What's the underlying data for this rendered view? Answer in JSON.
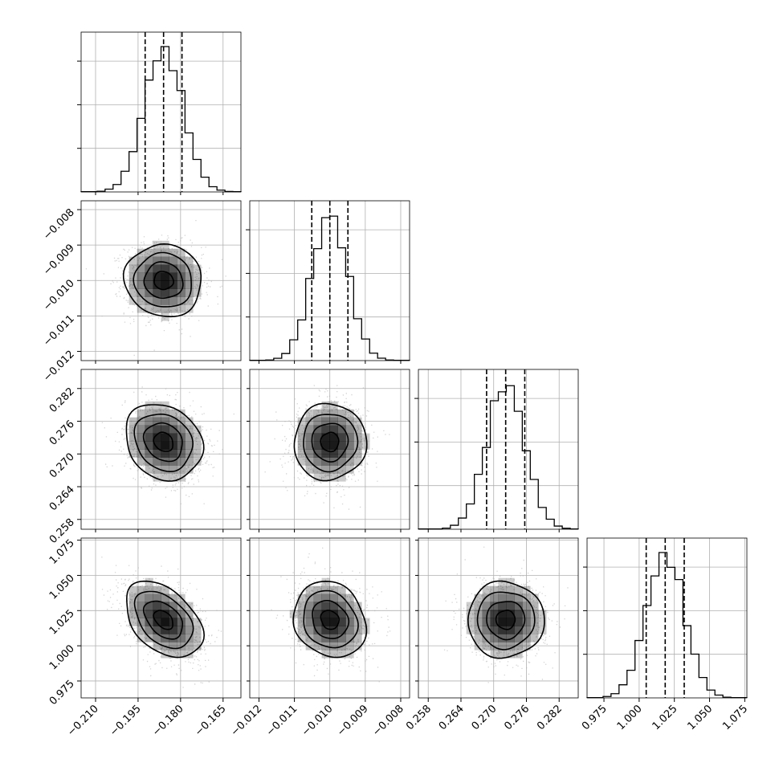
{
  "chart_data": {
    "type": "corner",
    "n_params": 4,
    "params": [
      {
        "range": [
          -0.2151,
          -0.1587
        ],
        "ticks": [
          -0.21,
          -0.195,
          -0.18,
          -0.165
        ],
        "tick_labels": [
          "−0.210",
          "−0.195",
          "−0.180",
          "−0.165"
        ],
        "median": -0.186,
        "std": 0.0068,
        "quantiles": [
          -0.1925,
          -0.186,
          -0.1795
        ]
      },
      {
        "range": [
          -0.01226,
          -0.00775
        ],
        "ticks": [
          -0.012,
          -0.011,
          -0.01,
          -0.009,
          -0.008
        ],
        "tick_labels": [
          "−0.012",
          "−0.011",
          "−0.010",
          "−0.009",
          "−0.008"
        ],
        "median": -0.01,
        "std": 0.00051,
        "quantiles": [
          -0.01051,
          -0.01,
          -0.00949
        ]
      },
      {
        "range": [
          0.2562,
          0.2855
        ],
        "ticks": [
          0.258,
          0.264,
          0.27,
          0.276,
          0.282
        ],
        "tick_labels": [
          "0.258",
          "0.264",
          "0.270",
          "0.276",
          "0.282"
        ],
        "median": 0.2722,
        "std": 0.0035,
        "quantiles": [
          0.2687,
          0.2722,
          0.2757
        ]
      },
      {
        "range": [
          0.963,
          1.0765
        ],
        "ticks": [
          0.975,
          1.0,
          1.025,
          1.05,
          1.075
        ],
        "tick_labels": [
          "0.975",
          "1.000",
          "1.025",
          "1.050",
          "1.075"
        ],
        "median": 1.0185,
        "std": 0.0135,
        "quantiles": [
          1.005,
          1.0185,
          1.032
        ]
      }
    ],
    "correlations": [
      [
        1.0,
        -0.05,
        -0.18,
        -0.42
      ],
      [
        -0.05,
        1.0,
        0.02,
        -0.15
      ],
      [
        -0.18,
        0.02,
        1.0,
        0.0
      ],
      [
        -0.42,
        -0.15,
        0.0,
        1.0
      ]
    ],
    "histogram_style": "step",
    "quantile_line_style": "dashed",
    "contour_levels_sigma": [
      0.5,
      1.0,
      1.5,
      2.0
    ],
    "grid": true,
    "colors": {
      "line": "#000000",
      "points": "#b0b0b0",
      "grid": "#b0b0b0",
      "density": "#000000"
    }
  }
}
